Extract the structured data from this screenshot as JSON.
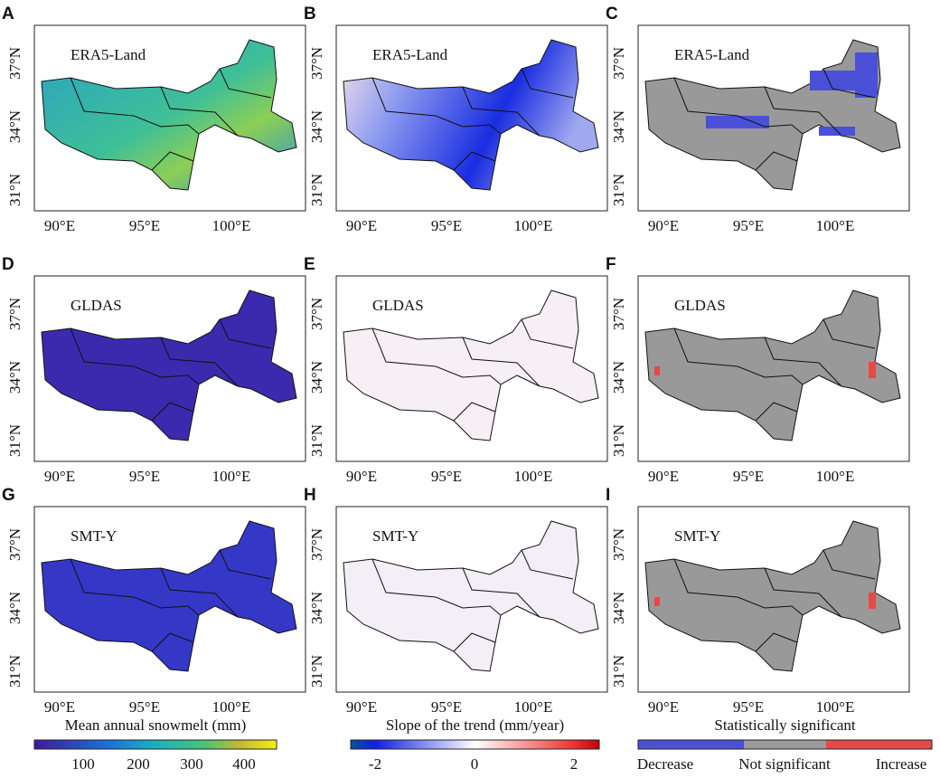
{
  "panels": [
    {
      "letter": "A",
      "label": "ERA5-Land"
    },
    {
      "letter": "B",
      "label": "ERA5-Land"
    },
    {
      "letter": "C",
      "label": "ERA5-Land"
    },
    {
      "letter": "D",
      "label": "GLDAS"
    },
    {
      "letter": "E",
      "label": "GLDAS"
    },
    {
      "letter": "F",
      "label": "GLDAS"
    },
    {
      "letter": "G",
      "label": "SMT-Y"
    },
    {
      "letter": "H",
      "label": "SMT-Y"
    },
    {
      "letter": "I",
      "label": "SMT-Y"
    }
  ],
  "y_ticks": [
    "37°N",
    "34°N",
    "31°N"
  ],
  "x_ticks": [
    "90°E",
    "95°E",
    "100°E"
  ],
  "colorbars": [
    {
      "title": "Mean annual snowmelt (mm)",
      "ticks": [
        "100",
        "200",
        "300",
        "400"
      ]
    },
    {
      "title": "Slope of the trend (mm/year)",
      "ticks": [
        "-2",
        "0",
        "2"
      ]
    },
    {
      "title": "Statistically significant",
      "ticks": [
        "Decrease",
        "Not significant",
        "Increase"
      ]
    }
  ]
}
